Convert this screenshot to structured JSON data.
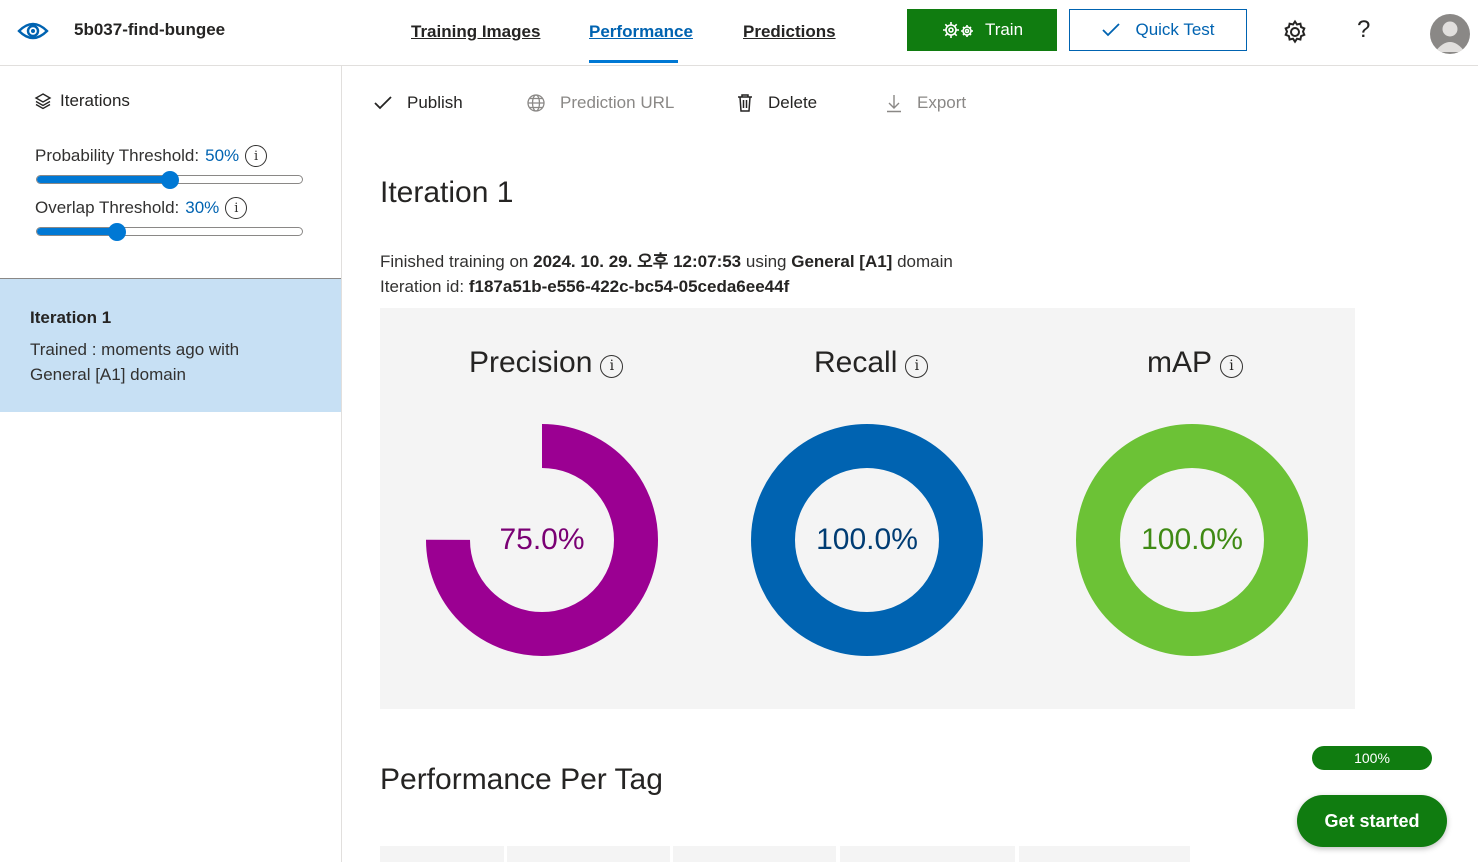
{
  "header": {
    "project_name": "5b037-find-bungee",
    "tabs": [
      {
        "label": "Training Images"
      },
      {
        "label": "Performance"
      },
      {
        "label": "Predictions"
      }
    ],
    "active_tab": "Performance",
    "train_label": "Train",
    "quick_test_label": "Quick Test",
    "help_label": "?"
  },
  "sidebar": {
    "iterations_label": "Iterations",
    "probability_threshold": {
      "label": "Probability Threshold:",
      "value_text": "50%",
      "value": 0.5
    },
    "overlap_threshold": {
      "label": "Overlap Threshold:",
      "value_text": "30%",
      "value": 0.3
    },
    "iteration_card": {
      "title": "Iteration 1",
      "description": "Trained : moments ago with General [A1] domain"
    }
  },
  "commands": {
    "publish": "Publish",
    "prediction_url": "Prediction URL",
    "delete": "Delete",
    "export": "Export"
  },
  "main": {
    "title": "Iteration 1",
    "finished_prefix": "Finished training on",
    "finished_date": "2024. 10. 29. 오후 12:07:53",
    "using_text": "using",
    "domain": "General [A1]",
    "domain_suffix": "domain",
    "iteration_id_label": "Iteration id:",
    "iteration_id": "f187a51b-e556-422c-bc54-05ceda6ee44f",
    "per_tag_title": "Performance Per Tag"
  },
  "metrics": [
    {
      "name": "Precision",
      "value": 75.0,
      "display": "75.0%",
      "color": "#9b0092",
      "text_color": "#7a0074"
    },
    {
      "name": "Recall",
      "value": 100.0,
      "display": "100.0%",
      "color": "#0063b1",
      "text_color": "#003c73"
    },
    {
      "name": "mAP",
      "value": 100.0,
      "display": "100.0%",
      "color": "#6cc236",
      "text_color": "#3f8a14"
    }
  ],
  "progress": {
    "label": "100%",
    "value": 1.0
  },
  "get_started_label": "Get started",
  "colors": {
    "accent": "#0078d4",
    "train_green": "#107c10",
    "selected_row": "#c7e0f4"
  }
}
